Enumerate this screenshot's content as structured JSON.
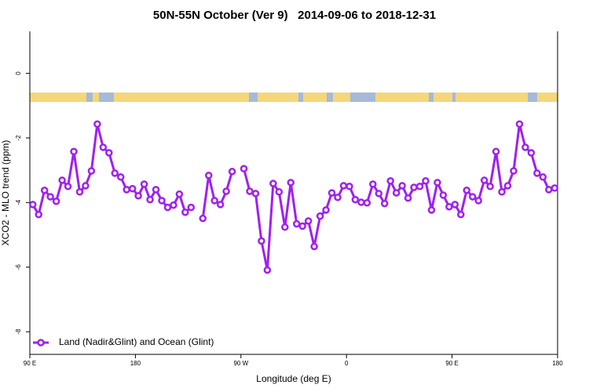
{
  "chart_data": {
    "type": "line",
    "title": "50N-55N October (Ver 9)   2014-09-06 to 2018-12-31",
    "x_label": "Longitude (deg E)",
    "y_label": "XCO2 - MLO trend (ppm)",
    "xlim": [
      90,
      540
    ],
    "xticks": [
      {
        "value": 90,
        "label": "90 E"
      },
      {
        "value": 180,
        "label": "180"
      },
      {
        "value": 270,
        "label": "90 W"
      },
      {
        "value": 360,
        "label": "0"
      },
      {
        "value": 450,
        "label": "90 E"
      },
      {
        "value": 540,
        "label": "180"
      }
    ],
    "ylim": [
      -8.7,
      1.3
    ],
    "yticks": [
      -8,
      -6,
      -4,
      -2,
      0
    ],
    "legend": "bottomleft",
    "x": [
      92.5,
      97.5,
      102.5,
      107.5,
      112.5,
      117.5,
      122.5,
      127.5,
      132.5,
      137.5,
      142.5,
      147.5,
      152.5,
      157.5,
      162.5,
      167.5,
      172.5,
      177.5,
      182.5,
      187.5,
      192.5,
      197.5,
      202.5,
      207.5,
      212.5,
      217.5,
      222.5,
      227.5,
      232.5,
      237.5,
      242.5,
      247.5,
      252.5,
      257.5,
      262.5,
      267.5,
      272.5,
      277.5,
      282.5,
      287.5,
      292.5,
      297.5,
      302.5,
      307.5,
      312.5,
      317.5,
      322.5,
      327.5,
      332.5,
      337.5,
      342.5,
      347.5,
      352.5,
      357.5,
      362.5,
      367.5,
      372.5,
      377.5,
      382.5,
      387.5,
      392.5,
      397.5,
      402.5,
      407.5,
      412.5,
      417.5,
      422.5,
      427.5,
      432.5,
      437.5,
      442.5,
      447.5,
      452.5,
      457.5,
      462.5,
      467.5,
      472.5,
      477.5,
      482.5,
      487.5,
      492.5,
      497.5,
      502.5,
      507.5,
      512.5,
      517.5,
      522.5,
      527.5,
      532.5,
      537.5
    ],
    "series": [
      {
        "name": "Land (Nadir&Glint) and Ocean (Glint)",
        "color": "#a020f0",
        "values": [
          -4.06,
          -4.37,
          -3.62,
          -3.82,
          -3.96,
          -3.31,
          -3.5,
          -2.42,
          -3.67,
          -3.48,
          -3.02,
          -1.57,
          -2.29,
          -2.46,
          -3.09,
          -3.21,
          -3.6,
          -3.57,
          -3.79,
          -3.43,
          -3.91,
          -3.6,
          -3.94,
          -4.15,
          -4.08,
          -3.74,
          -4.3,
          -4.15,
          null,
          -4.49,
          -3.16,
          -3.94,
          -4.06,
          -3.65,
          -3.04,
          null,
          -2.95,
          -3.65,
          -3.72,
          -5.19,
          -6.09,
          -3.41,
          -3.67,
          -4.76,
          -3.38,
          -4.66,
          -4.73,
          -4.57,
          -5.36,
          -4.42,
          -4.23,
          -3.7,
          -3.84,
          -3.48,
          -3.5,
          -3.91,
          -3.99,
          -4.01,
          -3.43,
          -3.72,
          -4.03,
          -3.33,
          -3.7,
          -3.48,
          -3.86,
          -3.53,
          -3.5,
          -3.33,
          -4.23,
          -3.38,
          -3.77,
          -4.13,
          -4.06,
          -4.37,
          -3.62,
          -3.82,
          -3.94,
          -3.31,
          -3.5,
          -2.42,
          -3.67,
          -3.48,
          -3.02,
          -1.57,
          -2.29,
          -2.46,
          -3.09,
          -3.21,
          -3.6,
          -3.55
        ]
      }
    ]
  }
}
